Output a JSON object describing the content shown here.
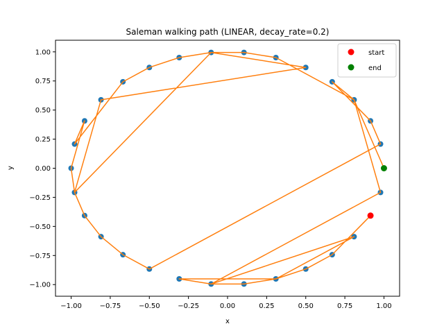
{
  "chart_data": {
    "type": "scatter",
    "title": "Saleman walking path (LINEAR, decay_rate=0.2)",
    "xlabel": "x",
    "ylabel": "y",
    "xlim": [
      -1.1,
      1.1
    ],
    "ylim": [
      -1.1,
      1.1
    ],
    "xticks": [
      -1.0,
      -0.75,
      -0.5,
      -0.25,
      0.0,
      0.25,
      0.5,
      0.75,
      1.0
    ],
    "yticks": [
      -1.0,
      -0.75,
      -0.5,
      -0.25,
      0.0,
      0.25,
      0.5,
      0.75,
      1.0
    ],
    "xtick_labels": [
      "−1.00",
      "−0.75",
      "−0.50",
      "−0.25",
      "0.00",
      "0.25",
      "0.50",
      "0.75",
      "1.00"
    ],
    "ytick_labels": [
      "−1.00",
      "−0.75",
      "−0.50",
      "−0.25",
      "0.00",
      "0.25",
      "0.50",
      "0.75",
      "1.00"
    ],
    "grid": false,
    "legend_position": "top-right",
    "colors": {
      "points": "#1f77b4",
      "path": "#ff7f0e",
      "start": "#ff0000",
      "end": "#008000"
    },
    "points": [
      {
        "x": 1.0,
        "y": 0.0
      },
      {
        "x": 0.978,
        "y": 0.208
      },
      {
        "x": 0.914,
        "y": 0.407
      },
      {
        "x": 0.809,
        "y": 0.588
      },
      {
        "x": 0.669,
        "y": 0.743
      },
      {
        "x": 0.5,
        "y": 0.866
      },
      {
        "x": 0.309,
        "y": 0.951
      },
      {
        "x": 0.105,
        "y": 0.995
      },
      {
        "x": -0.105,
        "y": 0.995
      },
      {
        "x": -0.309,
        "y": 0.951
      },
      {
        "x": -0.5,
        "y": 0.866
      },
      {
        "x": -0.669,
        "y": 0.743
      },
      {
        "x": -0.809,
        "y": 0.588
      },
      {
        "x": -0.914,
        "y": 0.407
      },
      {
        "x": -0.978,
        "y": 0.208
      },
      {
        "x": -1.0,
        "y": 0.0
      },
      {
        "x": -0.978,
        "y": -0.208
      },
      {
        "x": -0.914,
        "y": -0.407
      },
      {
        "x": -0.809,
        "y": -0.588
      },
      {
        "x": -0.669,
        "y": -0.743
      },
      {
        "x": -0.5,
        "y": -0.866
      },
      {
        "x": -0.309,
        "y": -0.951
      },
      {
        "x": -0.105,
        "y": -0.995
      },
      {
        "x": 0.105,
        "y": -0.995
      },
      {
        "x": 0.309,
        "y": -0.951
      },
      {
        "x": 0.5,
        "y": -0.866
      },
      {
        "x": 0.669,
        "y": -0.743
      },
      {
        "x": 0.809,
        "y": -0.588
      },
      {
        "x": 0.914,
        "y": -0.407
      },
      {
        "x": 0.978,
        "y": -0.208
      }
    ],
    "path": [
      {
        "x": 0.914,
        "y": -0.407
      },
      {
        "x": 0.669,
        "y": -0.743
      },
      {
        "x": 0.5,
        "y": -0.866
      },
      {
        "x": 0.309,
        "y": -0.951
      },
      {
        "x": 0.105,
        "y": -0.995
      },
      {
        "x": -0.105,
        "y": -0.995
      },
      {
        "x": -0.309,
        "y": -0.951
      },
      {
        "x": 0.309,
        "y": -0.951
      },
      {
        "x": 0.809,
        "y": -0.588
      },
      {
        "x": -0.105,
        "y": -0.995
      },
      {
        "x": 0.978,
        "y": -0.208
      },
      {
        "x": 0.809,
        "y": 0.588
      },
      {
        "x": 0.669,
        "y": 0.743
      },
      {
        "x": 0.914,
        "y": 0.407
      },
      {
        "x": 0.978,
        "y": 0.208
      },
      {
        "x": -0.5,
        "y": -0.866
      },
      {
        "x": -0.669,
        "y": -0.743
      },
      {
        "x": -0.809,
        "y": -0.588
      },
      {
        "x": -0.914,
        "y": -0.407
      },
      {
        "x": -0.978,
        "y": -0.208
      },
      {
        "x": -0.105,
        "y": 0.995
      },
      {
        "x": 0.5,
        "y": 0.866
      },
      {
        "x": -0.809,
        "y": 0.588
      },
      {
        "x": -0.978,
        "y": -0.208
      },
      {
        "x": -1.0,
        "y": 0.0
      },
      {
        "x": -0.914,
        "y": 0.407
      },
      {
        "x": -0.978,
        "y": 0.208
      },
      {
        "x": -0.669,
        "y": 0.743
      },
      {
        "x": -0.5,
        "y": 0.866
      },
      {
        "x": -0.309,
        "y": 0.951
      },
      {
        "x": -0.105,
        "y": 0.995
      },
      {
        "x": 0.105,
        "y": 0.995
      },
      {
        "x": 0.309,
        "y": 0.951
      },
      {
        "x": 0.809,
        "y": 0.588
      },
      {
        "x": 1.0,
        "y": 0.0
      }
    ],
    "start": {
      "x": 0.914,
      "y": -0.407
    },
    "end": {
      "x": 1.0,
      "y": 0.0
    },
    "legend": [
      {
        "label": "start",
        "color": "#ff0000"
      },
      {
        "label": "end",
        "color": "#008000"
      }
    ]
  }
}
